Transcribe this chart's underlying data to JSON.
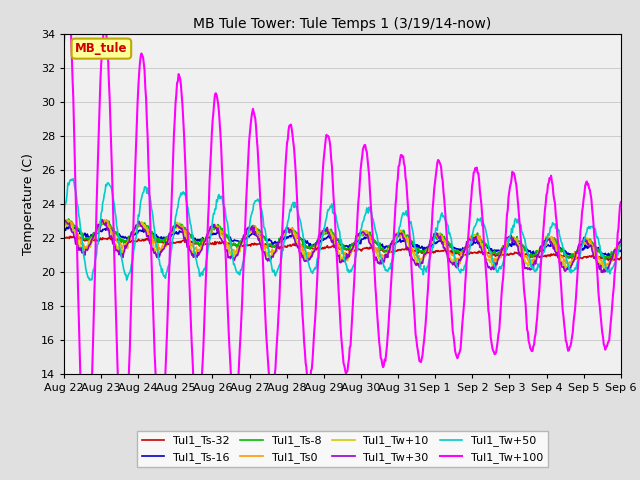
{
  "title": "MB Tule Tower: Tule Temps 1 (3/19/14-now)",
  "ylabel": "Temperature (C)",
  "ylim": [
    14,
    34
  ],
  "yticks": [
    14,
    16,
    18,
    20,
    22,
    24,
    26,
    28,
    30,
    32,
    34
  ],
  "background_color": "#e0e0e0",
  "plot_bg_color": "#f0f0f0",
  "legend_box_color": "#ffff99",
  "legend_box_edge": "#bbaa00",
  "annotation_label": "MB_tule",
  "series": [
    {
      "label": "Tul1_Ts-32",
      "color": "#cc0000",
      "lw": 1.2
    },
    {
      "label": "Tul1_Ts-16",
      "color": "#0000cc",
      "lw": 1.2
    },
    {
      "label": "Tul1_Ts-8",
      "color": "#00bb00",
      "lw": 1.2
    },
    {
      "label": "Tul1_Ts0",
      "color": "#ff9900",
      "lw": 1.2
    },
    {
      "label": "Tul1_Tw+10",
      "color": "#cccc00",
      "lw": 1.2
    },
    {
      "label": "Tul1_Tw+30",
      "color": "#9900cc",
      "lw": 1.2
    },
    {
      "label": "Tul1_Tw+50",
      "color": "#00cccc",
      "lw": 1.2
    },
    {
      "label": "Tul1_Tw+100",
      "color": "#ff00ff",
      "lw": 1.5
    }
  ],
  "x_tick_labels": [
    "Aug 22",
    "Aug 23",
    "Aug 24",
    "Aug 25",
    "Aug 26",
    "Aug 27",
    "Aug 28",
    "Aug 29",
    "Aug 30",
    "Aug 31",
    "Sep 1",
    "Sep 2",
    "Sep 3",
    "Sep 4",
    "Sep 5",
    "Sep 6"
  ]
}
